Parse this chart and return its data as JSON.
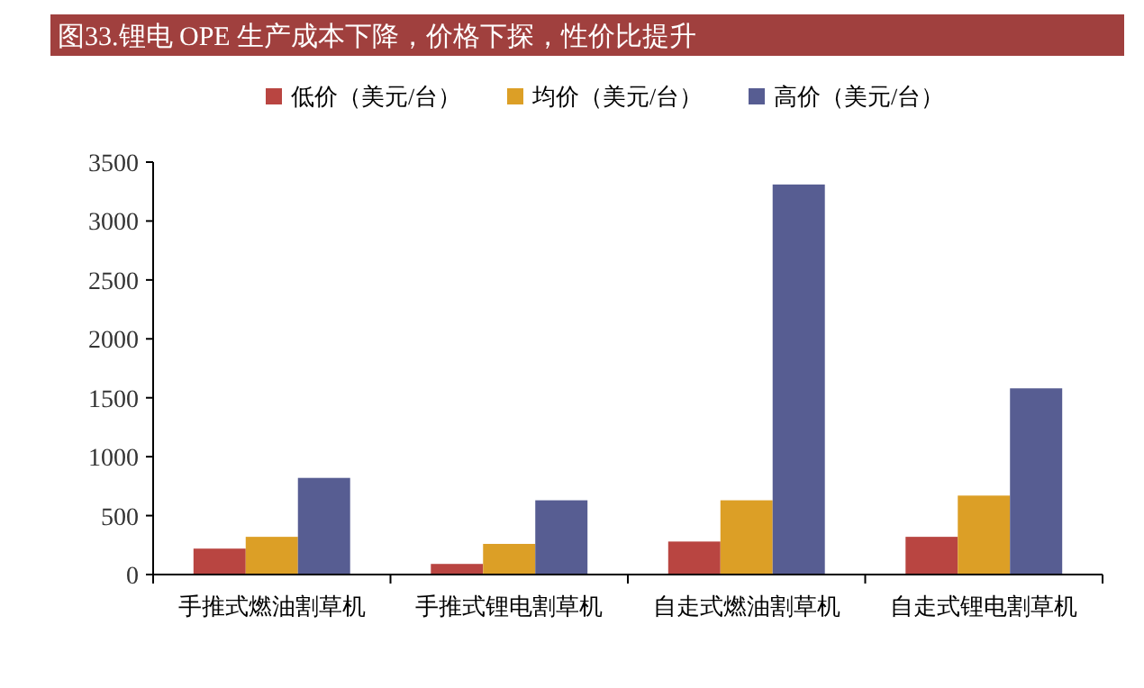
{
  "chart_data": {
    "type": "bar",
    "title": "图33.锂电 OPE 生产成本下降，价格下探，性价比提升",
    "categories": [
      "手推式燃油割草机",
      "手推式锂电割草机",
      "自走式燃油割草机",
      "自走式锂电割草机"
    ],
    "series": [
      {
        "name": "低价（美元/台）",
        "color": "#b94541",
        "values": [
          220,
          90,
          280,
          320
        ]
      },
      {
        "name": "均价（美元/台）",
        "color": "#dc9f26",
        "values": [
          320,
          260,
          630,
          670
        ]
      },
      {
        "name": "高价（美元/台）",
        "color": "#575d92",
        "values": [
          820,
          630,
          3310,
          1580
        ]
      }
    ],
    "ylim": [
      0,
      3500
    ],
    "yticks": [
      0,
      500,
      1000,
      1500,
      2000,
      2500,
      3000,
      3500
    ],
    "grid": false,
    "legend": "top"
  }
}
